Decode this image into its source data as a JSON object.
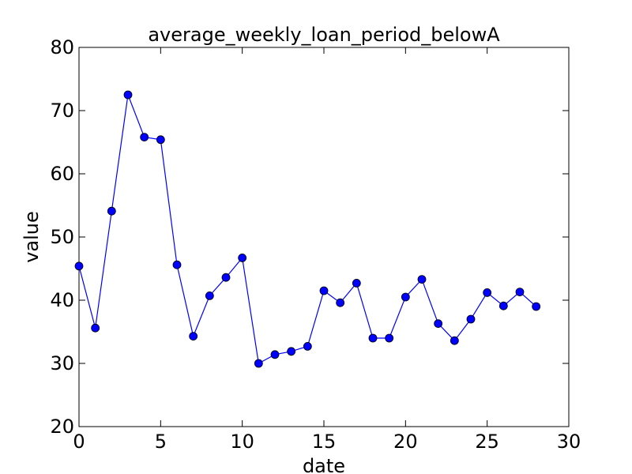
{
  "chart_data": {
    "type": "line",
    "title": "average_weekly_loan_period_belowA",
    "xlabel": "date",
    "ylabel": "value",
    "xlim": [
      0,
      30
    ],
    "ylim": [
      20,
      80
    ],
    "xticks": [
      0,
      5,
      10,
      15,
      20,
      25,
      30
    ],
    "yticks": [
      20,
      30,
      40,
      50,
      60,
      70,
      80
    ],
    "grid": false,
    "legend": "none",
    "series": [
      {
        "color": "#0000ff",
        "marker": "circle",
        "x": [
          0,
          1,
          2,
          3,
          4,
          5,
          6,
          7,
          8,
          9,
          10,
          11,
          12,
          13,
          14,
          15,
          16,
          17,
          18,
          19,
          20,
          21,
          22,
          23,
          24,
          25,
          26,
          27,
          28
        ],
        "y": [
          45.4,
          35.6,
          54.1,
          72.5,
          65.8,
          65.4,
          45.6,
          34.3,
          40.7,
          43.6,
          46.7,
          30.0,
          31.4,
          31.9,
          32.7,
          41.5,
          39.6,
          42.7,
          34.0,
          34.0,
          40.5,
          43.3,
          36.3,
          33.6,
          37.0,
          41.2,
          39.1,
          41.3,
          39.0
        ]
      }
    ]
  }
}
